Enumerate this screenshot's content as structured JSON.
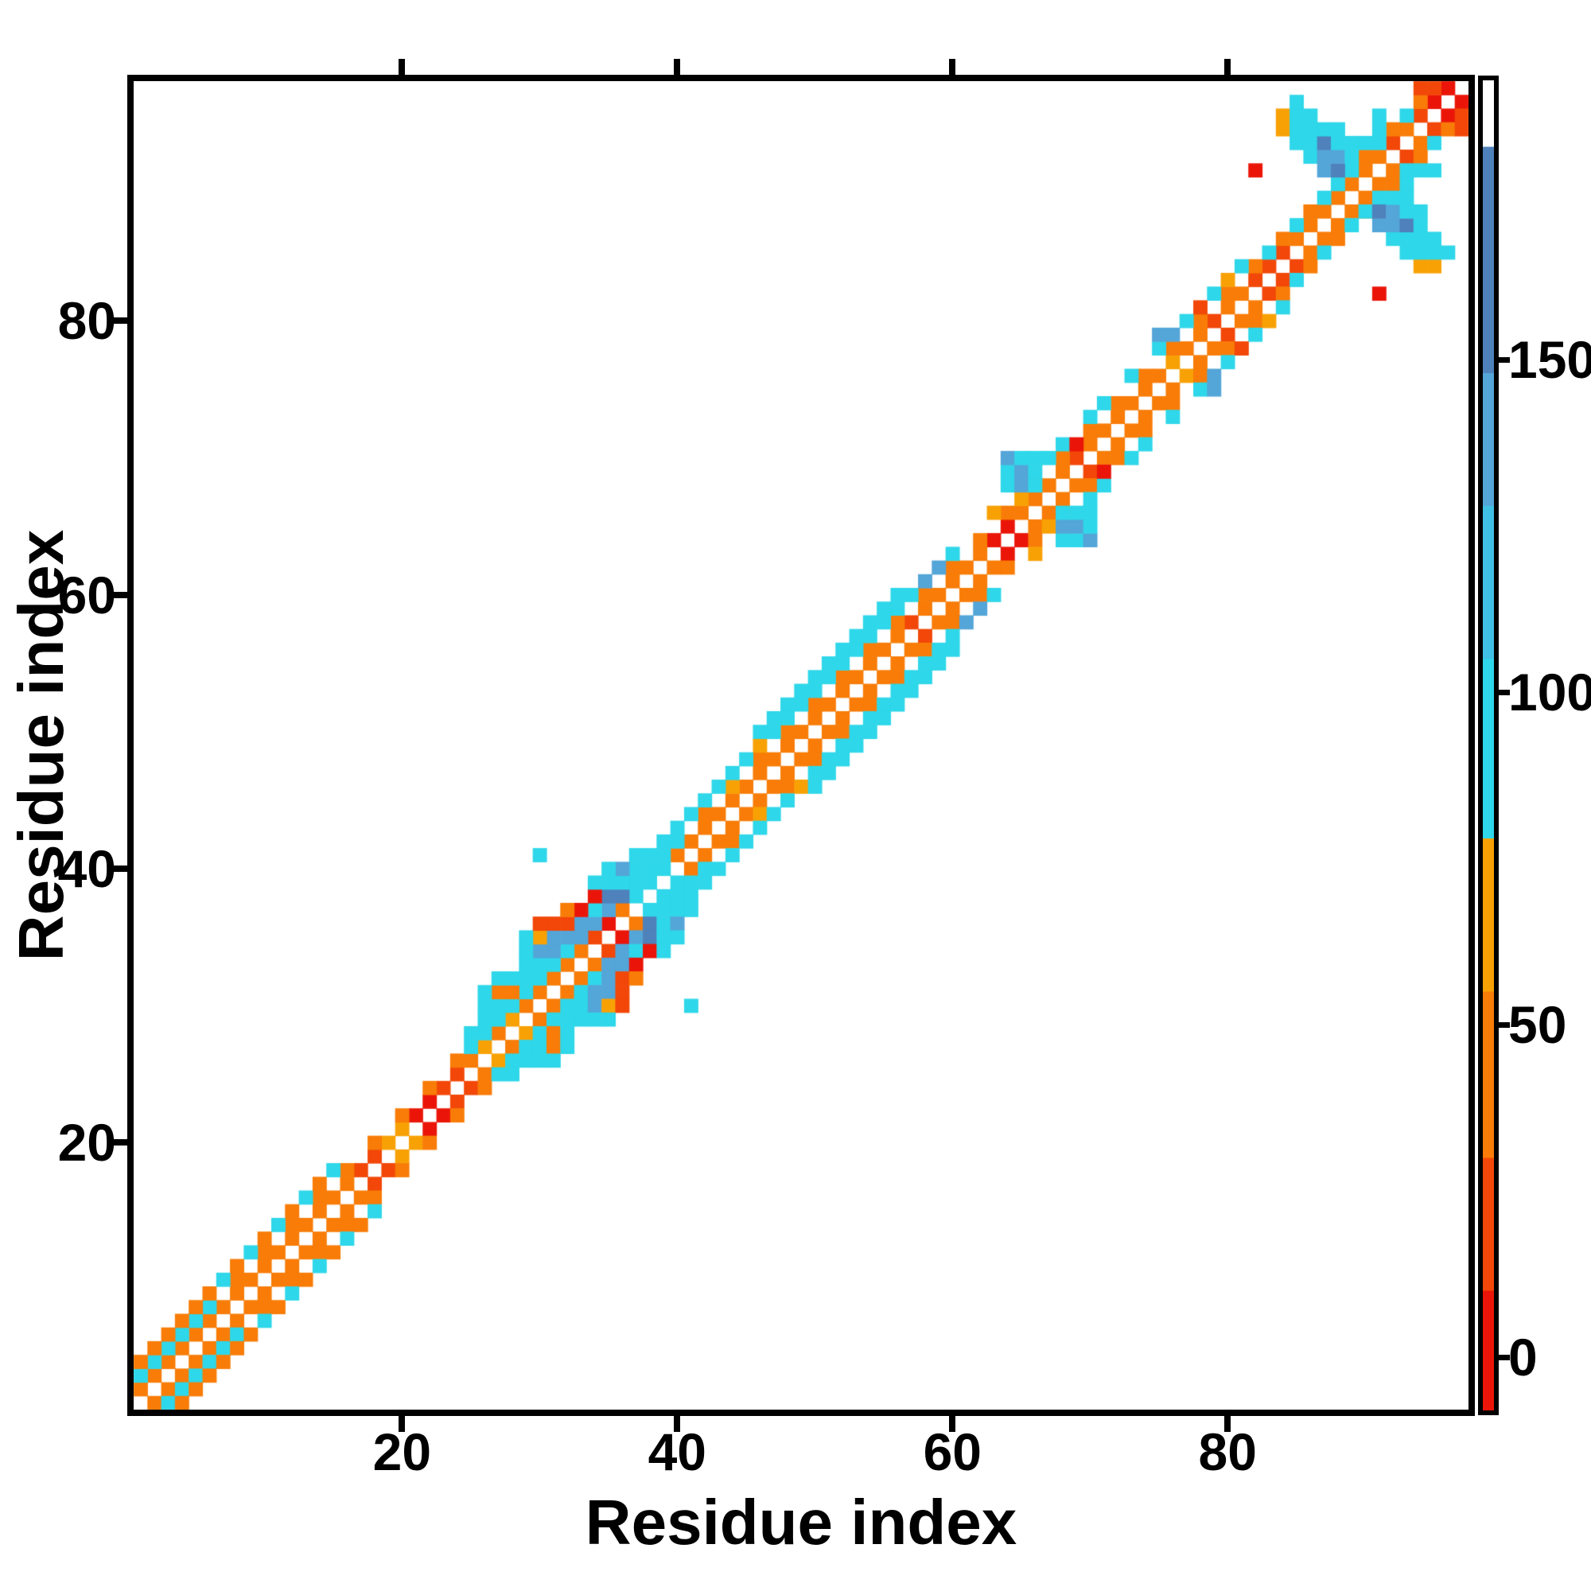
{
  "chart_data": {
    "type": "heatmap",
    "title": "",
    "xlabel": "Residue index",
    "ylabel": "Residue index",
    "x_ticks": [
      20,
      40,
      60,
      80
    ],
    "y_ticks": [
      20,
      40,
      60,
      80
    ],
    "axis_range": [
      1,
      97
    ],
    "n_residues": 97,
    "grid": false,
    "background_color": "#ffffff",
    "symmetric": true,
    "diagonal_color": "#ffffff",
    "colorbar": {
      "position": "right",
      "ticks": [
        0,
        50,
        100,
        150
      ],
      "vmin": -8,
      "vmax": 192,
      "stops": [
        {
          "upto": 10,
          "color": "#ea1508"
        },
        {
          "upto": 30,
          "color": "#f24708"
        },
        {
          "upto": 55,
          "color": "#f87c07"
        },
        {
          "upto": 78,
          "color": "#f8a105"
        },
        {
          "upto": 105,
          "color": "#2ed7e9"
        },
        {
          "upto": 128,
          "color": "#3fc0e4"
        },
        {
          "upto": 148,
          "color": "#54a5d8"
        },
        {
          "upto": 182,
          "color": "#4f81bb"
        },
        {
          "upto": 192,
          "color": "#ffffff"
        }
      ]
    },
    "cells": [
      [
        1,
        2,
        48
      ],
      [
        2,
        3,
        48
      ],
      [
        3,
        4,
        48
      ],
      [
        4,
        5,
        48
      ],
      [
        5,
        6,
        48
      ],
      [
        6,
        7,
        48
      ],
      [
        7,
        8,
        48
      ],
      [
        8,
        9,
        48
      ],
      [
        9,
        10,
        48
      ],
      [
        10,
        11,
        48
      ],
      [
        11,
        12,
        48
      ],
      [
        12,
        13,
        48
      ],
      [
        13,
        14,
        48
      ],
      [
        14,
        15,
        48
      ],
      [
        15,
        16,
        48
      ],
      [
        16,
        17,
        48
      ],
      [
        17,
        18,
        25
      ],
      [
        18,
        19,
        25
      ],
      [
        19,
        20,
        70
      ],
      [
        20,
        21,
        70
      ],
      [
        21,
        22,
        5
      ],
      [
        22,
        23,
        5
      ],
      [
        23,
        24,
        25
      ],
      [
        24,
        25,
        25
      ],
      [
        25,
        26,
        48
      ],
      [
        26,
        27,
        70
      ],
      [
        27,
        28,
        48
      ],
      [
        28,
        29,
        70
      ],
      [
        29,
        30,
        48
      ],
      [
        30,
        31,
        48
      ],
      [
        31,
        32,
        48
      ],
      [
        32,
        33,
        48
      ],
      [
        33,
        34,
        48
      ],
      [
        34,
        35,
        25
      ],
      [
        35,
        36,
        5
      ],
      [
        36,
        37,
        48
      ],
      [
        37,
        38,
        95
      ],
      [
        38,
        39,
        95
      ],
      [
        39,
        40,
        95
      ],
      [
        40,
        41,
        48
      ],
      [
        41,
        42,
        48
      ],
      [
        42,
        43,
        48
      ],
      [
        43,
        44,
        48
      ],
      [
        44,
        45,
        48
      ],
      [
        45,
        46,
        48
      ],
      [
        46,
        47,
        48
      ],
      [
        47,
        48,
        48
      ],
      [
        48,
        49,
        48
      ],
      [
        49,
        50,
        48
      ],
      [
        50,
        51,
        48
      ],
      [
        51,
        52,
        48
      ],
      [
        52,
        53,
        48
      ],
      [
        53,
        54,
        48
      ],
      [
        54,
        55,
        48
      ],
      [
        55,
        56,
        48
      ],
      [
        56,
        57,
        48
      ],
      [
        57,
        58,
        25
      ],
      [
        58,
        59,
        48
      ],
      [
        59,
        60,
        48
      ],
      [
        60,
        61,
        48
      ],
      [
        61,
        62,
        48
      ],
      [
        62,
        63,
        48
      ],
      [
        63,
        64,
        5
      ],
      [
        64,
        65,
        5
      ],
      [
        65,
        66,
        48
      ],
      [
        66,
        67,
        48
      ],
      [
        67,
        68,
        48
      ],
      [
        68,
        69,
        48
      ],
      [
        69,
        70,
        25
      ],
      [
        70,
        71,
        48
      ],
      [
        71,
        72,
        48
      ],
      [
        72,
        73,
        48
      ],
      [
        73,
        74,
        48
      ],
      [
        74,
        75,
        48
      ],
      [
        75,
        76,
        48
      ],
      [
        76,
        77,
        70
      ],
      [
        77,
        78,
        48
      ],
      [
        78,
        79,
        48
      ],
      [
        79,
        80,
        25
      ],
      [
        80,
        81,
        48
      ],
      [
        81,
        82,
        48
      ],
      [
        82,
        83,
        25
      ],
      [
        83,
        84,
        25
      ],
      [
        84,
        85,
        25
      ],
      [
        85,
        86,
        48
      ],
      [
        86,
        87,
        48
      ],
      [
        87,
        88,
        48
      ],
      [
        88,
        89,
        48
      ],
      [
        89,
        90,
        48
      ],
      [
        90,
        91,
        48
      ],
      [
        91,
        92,
        48
      ],
      [
        92,
        93,
        25
      ],
      [
        93,
        94,
        48
      ],
      [
        94,
        95,
        25
      ],
      [
        95,
        96,
        5
      ],
      [
        96,
        97,
        5
      ],
      [
        1,
        3,
        95
      ],
      [
        2,
        4,
        95
      ],
      [
        3,
        5,
        95
      ],
      [
        4,
        6,
        95
      ],
      [
        5,
        7,
        95
      ],
      [
        6,
        8,
        95
      ],
      [
        8,
        10,
        48
      ],
      [
        10,
        12,
        48
      ],
      [
        12,
        14,
        48
      ],
      [
        14,
        16,
        48
      ],
      [
        16,
        18,
        48
      ],
      [
        18,
        20,
        48
      ],
      [
        20,
        22,
        48
      ],
      [
        22,
        24,
        48
      ],
      [
        24,
        26,
        48
      ],
      [
        25,
        27,
        95
      ],
      [
        26,
        28,
        95
      ],
      [
        27,
        29,
        95
      ],
      [
        28,
        30,
        95
      ],
      [
        29,
        31,
        95
      ],
      [
        30,
        32,
        95
      ],
      [
        31,
        33,
        95
      ],
      [
        32,
        34,
        95
      ],
      [
        33,
        35,
        135
      ],
      [
        34,
        36,
        135
      ],
      [
        35,
        37,
        135
      ],
      [
        36,
        38,
        165
      ],
      [
        37,
        39,
        95
      ],
      [
        38,
        40,
        95
      ],
      [
        39,
        41,
        95
      ],
      [
        40,
        42,
        95
      ],
      [
        42,
        44,
        48
      ],
      [
        44,
        46,
        70
      ],
      [
        46,
        48,
        48
      ],
      [
        48,
        50,
        48
      ],
      [
        50,
        52,
        48
      ],
      [
        52,
        54,
        48
      ],
      [
        54,
        56,
        48
      ],
      [
        56,
        58,
        48
      ],
      [
        58,
        60,
        48
      ],
      [
        60,
        62,
        48
      ],
      [
        62,
        64,
        48
      ],
      [
        64,
        66,
        48
      ],
      [
        66,
        68,
        48
      ],
      [
        68,
        70,
        48
      ],
      [
        70,
        72,
        48
      ],
      [
        72,
        74,
        48
      ],
      [
        74,
        76,
        48
      ],
      [
        76,
        78,
        48
      ],
      [
        78,
        80,
        48
      ],
      [
        80,
        82,
        48
      ],
      [
        82,
        84,
        48
      ],
      [
        84,
        86,
        48
      ],
      [
        86,
        88,
        48
      ],
      [
        88,
        90,
        48
      ],
      [
        90,
        92,
        48
      ],
      [
        92,
        94,
        48
      ],
      [
        94,
        96,
        48
      ],
      [
        83,
        85,
        95
      ],
      [
        85,
        87,
        95
      ],
      [
        87,
        89,
        95
      ],
      [
        89,
        91,
        95
      ],
      [
        91,
        93,
        95
      ],
      [
        93,
        95,
        95
      ],
      [
        95,
        97,
        25
      ],
      [
        1,
        4,
        48
      ],
      [
        2,
        5,
        48
      ],
      [
        3,
        6,
        48
      ],
      [
        4,
        7,
        48
      ],
      [
        5,
        8,
        48
      ],
      [
        6,
        9,
        48
      ],
      [
        7,
        10,
        95
      ],
      [
        8,
        11,
        48
      ],
      [
        9,
        12,
        95
      ],
      [
        10,
        13,
        48
      ],
      [
        11,
        14,
        95
      ],
      [
        12,
        15,
        48
      ],
      [
        13,
        16,
        95
      ],
      [
        14,
        17,
        48
      ],
      [
        15,
        18,
        95
      ],
      [
        25,
        28,
        95
      ],
      [
        26,
        29,
        95
      ],
      [
        27,
        30,
        95
      ],
      [
        28,
        31,
        48
      ],
      [
        29,
        32,
        95
      ],
      [
        30,
        33,
        95
      ],
      [
        31,
        34,
        135
      ],
      [
        32,
        35,
        135
      ],
      [
        33,
        36,
        135
      ],
      [
        34,
        37,
        95
      ],
      [
        35,
        38,
        165
      ],
      [
        36,
        39,
        95
      ],
      [
        37,
        40,
        95
      ],
      [
        38,
        41,
        95
      ],
      [
        39,
        42,
        95
      ],
      [
        40,
        43,
        95
      ],
      [
        41,
        44,
        95
      ],
      [
        42,
        45,
        95
      ],
      [
        43,
        46,
        95
      ],
      [
        44,
        47,
        95
      ],
      [
        45,
        48,
        95
      ],
      [
        46,
        49,
        70
      ],
      [
        47,
        50,
        95
      ],
      [
        48,
        51,
        95
      ],
      [
        49,
        52,
        95
      ],
      [
        50,
        53,
        95
      ],
      [
        51,
        54,
        95
      ],
      [
        52,
        55,
        95
      ],
      [
        53,
        56,
        95
      ],
      [
        54,
        57,
        95
      ],
      [
        55,
        58,
        95
      ],
      [
        56,
        59,
        95
      ],
      [
        57,
        60,
        95
      ],
      [
        58,
        61,
        135
      ],
      [
        59,
        62,
        135
      ],
      [
        60,
        63,
        95
      ],
      [
        71,
        74,
        95
      ],
      [
        73,
        76,
        95
      ],
      [
        75,
        78,
        95
      ],
      [
        77,
        80,
        95
      ],
      [
        79,
        82,
        95
      ],
      [
        81,
        84,
        95
      ],
      [
        26,
        30,
        95
      ],
      [
        27,
        31,
        48
      ],
      [
        28,
        32,
        95
      ],
      [
        29,
        33,
        95
      ],
      [
        30,
        34,
        135
      ],
      [
        31,
        35,
        135
      ],
      [
        32,
        36,
        25
      ],
      [
        33,
        37,
        5
      ],
      [
        34,
        38,
        5
      ],
      [
        35,
        39,
        95
      ],
      [
        36,
        40,
        135
      ],
      [
        37,
        41,
        95
      ],
      [
        46,
        50,
        95
      ],
      [
        47,
        51,
        95
      ],
      [
        48,
        52,
        95
      ],
      [
        49,
        53,
        95
      ],
      [
        50,
        54,
        95
      ],
      [
        51,
        55,
        95
      ],
      [
        52,
        56,
        95
      ],
      [
        53,
        57,
        95
      ],
      [
        54,
        58,
        95
      ],
      [
        55,
        59,
        95
      ],
      [
        56,
        60,
        95
      ],
      [
        27,
        32,
        95
      ],
      [
        29,
        34,
        95
      ],
      [
        30,
        35,
        70
      ],
      [
        31,
        36,
        25
      ],
      [
        32,
        37,
        48
      ],
      [
        26,
        31,
        95
      ],
      [
        29,
        35,
        95
      ],
      [
        30,
        36,
        25
      ],
      [
        34,
        39,
        95
      ],
      [
        35,
        40,
        95
      ],
      [
        30,
        41,
        95
      ],
      [
        63,
        66,
        70
      ],
      [
        65,
        67,
        70
      ],
      [
        64,
        68,
        95
      ],
      [
        64,
        69,
        95
      ],
      [
        64,
        70,
        135
      ],
      [
        65,
        68,
        135
      ],
      [
        65,
        69,
        135
      ],
      [
        65,
        70,
        95
      ],
      [
        66,
        68,
        95
      ],
      [
        66,
        69,
        95
      ],
      [
        66,
        70,
        95
      ],
      [
        67,
        70,
        95
      ],
      [
        68,
        71,
        95
      ],
      [
        69,
        71,
        5
      ],
      [
        70,
        73,
        95
      ],
      [
        75,
        79,
        135
      ],
      [
        76,
        79,
        135
      ],
      [
        78,
        81,
        25
      ],
      [
        84,
        94,
        70
      ],
      [
        84,
        95,
        70
      ],
      [
        85,
        93,
        95
      ],
      [
        85,
        94,
        95
      ],
      [
        85,
        95,
        95
      ],
      [
        85,
        96,
        95
      ],
      [
        86,
        92,
        95
      ],
      [
        86,
        93,
        95
      ],
      [
        86,
        94,
        95
      ],
      [
        86,
        95,
        95
      ],
      [
        87,
        91,
        135
      ],
      [
        87,
        92,
        135
      ],
      [
        87,
        93,
        165
      ],
      [
        87,
        94,
        95
      ],
      [
        88,
        90,
        95
      ],
      [
        88,
        91,
        165
      ],
      [
        88,
        92,
        135
      ],
      [
        88,
        93,
        95
      ],
      [
        88,
        94,
        95
      ],
      [
        89,
        92,
        95
      ],
      [
        89,
        93,
        95
      ],
      [
        90,
        93,
        95
      ],
      [
        91,
        94,
        95
      ],
      [
        91,
        95,
        95
      ],
      [
        82,
        91,
        5
      ],
      [
        80,
        83,
        70
      ],
      [
        94,
        97,
        25
      ]
    ]
  }
}
